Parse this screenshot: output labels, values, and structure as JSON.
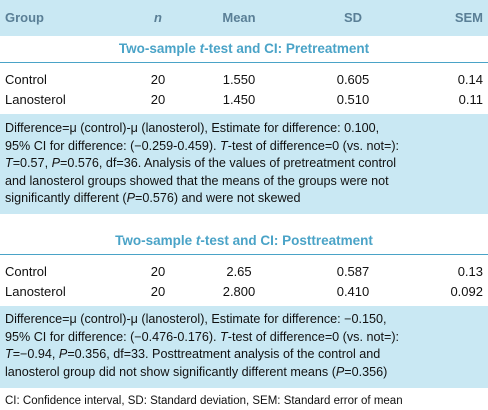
{
  "table": {
    "columns": [
      "Group",
      "n",
      "Mean",
      "SD",
      "SEM"
    ],
    "sections": [
      {
        "title_pre": "Two-sample ",
        "title_ital": "t",
        "title_post": "-test and CI: Pretreatment",
        "rows": [
          {
            "group": "Control",
            "n": "20",
            "mean": "1.550",
            "sd": "0.605",
            "sem": "0.14"
          },
          {
            "group": "Lanosterol",
            "n": "20",
            "mean": "1.450",
            "sd": "0.510",
            "sem": "0.11"
          }
        ],
        "note": {
          "l1": "Difference=μ (control)-μ (lanosterol), Estimate for difference: 0.100,",
          "l2a": "95% CI for difference: (−0.259-0.459). ",
          "l2b": "T",
          "l2c": "-test of difference=0 (vs. not=):",
          "l3a": "T",
          "l3b": "=0.57, ",
          "l3c": "P",
          "l3d": "=0.576, df=36. Analysis of the values of pretreatment control",
          "l4": "and lanosterol groups showed that the means of the groups were not",
          "l5a": "significantly different (",
          "l5b": "P",
          "l5c": "=0.576) and were not skewed"
        }
      },
      {
        "title_pre": "Two-sample ",
        "title_ital": "t",
        "title_post": "-test and CI: Posttreatment",
        "rows": [
          {
            "group": "Control",
            "n": "20",
            "mean": "2.65",
            "sd": "0.587",
            "sem": "0.13"
          },
          {
            "group": "Lanosterol",
            "n": "20",
            "mean": "2.800",
            "sd": "0.410",
            "sem": "0.092"
          }
        ],
        "note": {
          "l1": "Difference=μ (control)-μ (lanosterol), Estimate for difference: −0.150,",
          "l2a": "95% CI for difference: (−0.476-0.176). ",
          "l2b": "T",
          "l2c": "-test of difference=0 (vs. not=):",
          "l3a": "T",
          "l3b": "=−0.94, ",
          "l3c": "P",
          "l3d": "=0.356, df=33. Posttreatment analysis of the control and",
          "l4a": "lanosterol group did not show significantly different means (",
          "l4b": "P",
          "l4c": "=0.356)"
        }
      }
    ],
    "footer": "CI: Confidence interval, SD: Standard deviation, SEM: Standard error of mean"
  },
  "colors": {
    "header_bg": "#c9e8f3",
    "accent": "#4aa3c7",
    "header_text": "#5a7f96"
  }
}
